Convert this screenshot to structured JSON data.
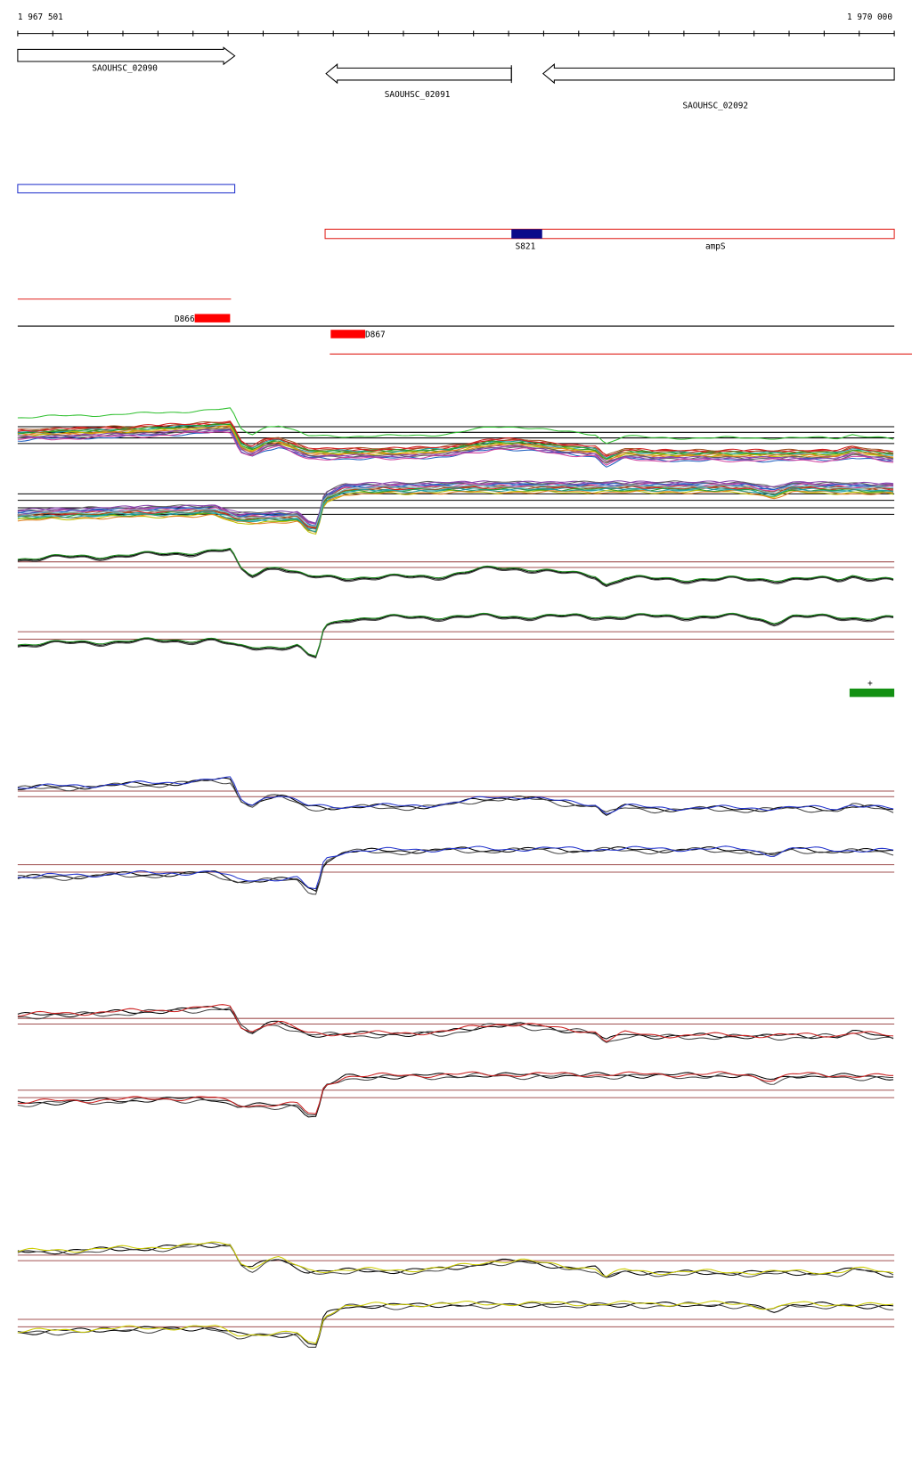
{
  "ruler": {
    "start": "1 967 501",
    "end": "1 970 000"
  },
  "genes": [
    {
      "label": "SAOUHSC_02090"
    },
    {
      "label": "SAOUHSC_02091"
    },
    {
      "label": "SAOUHSC_02092"
    }
  ],
  "features": [
    {
      "label": "S821"
    },
    {
      "label": "ampS"
    }
  ],
  "markers": [
    {
      "label": "D866"
    },
    {
      "label": "D867"
    }
  ],
  "strand": "+"
}
